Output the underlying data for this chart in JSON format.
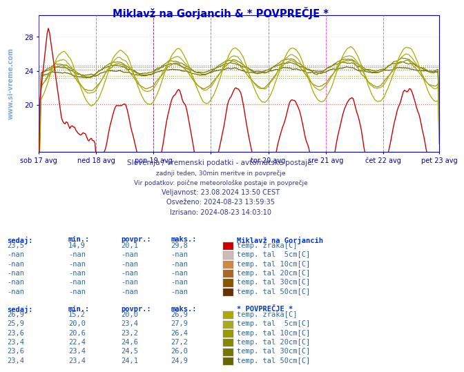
{
  "title": "Miklavž na Gorjancih & * POVPREČJE *",
  "title_color": "#0000cc",
  "bg_color": "#ffffff",
  "plot_bg_color": "#ffffff",
  "ylim": [
    14.5,
    30.5
  ],
  "xlim": [
    0,
    335
  ],
  "yticks": [
    20,
    24,
    28
  ],
  "tick_labels": [
    "sob 17 avg",
    "ned 18 avg",
    "pon 19 avg",
    "",
    "tor 20 avg",
    "sre 21 avg",
    "čet 22 avg",
    "pet 23 avg"
  ],
  "tick_positions": [
    0,
    48,
    96,
    144,
    192,
    240,
    288,
    335
  ],
  "subtitle_lines": [
    "Slovenija / vremenski podatki - avtomatske postaje.",
    "zadnji teden, 30min meritve in povprečje",
    "Vir podatkov: poični meteorološke postaje in povprečje",
    "Veljavnost: 23.08.2024 13:50 CEST",
    "Osveženo: 2024-08-23 13:59:35",
    "Izrisano: 2024-08-23 14:03:10"
  ],
  "table1_title": "Miklavž na Gorjancih",
  "table2_title": "* POVPREČJE *",
  "col_headers": [
    "sedaj:",
    "min.:",
    "povpr.:",
    "maks.:"
  ],
  "table1_rows": [
    [
      "23,5",
      "14,9",
      "20,1",
      "29,8",
      "#cc0000",
      "temp. zraka[C]"
    ],
    [
      "-nan",
      "-nan",
      "-nan",
      "-nan",
      "#ccbbbb",
      "temp. tal  5cm[C]"
    ],
    [
      "-nan",
      "-nan",
      "-nan",
      "-nan",
      "#cc8844",
      "temp. tal 10cm[C]"
    ],
    [
      "-nan",
      "-nan",
      "-nan",
      "-nan",
      "#aa6622",
      "temp. tal 20cm[C]"
    ],
    [
      "-nan",
      "-nan",
      "-nan",
      "-nan",
      "#885500",
      "temp. tal 30cm[C]"
    ],
    [
      "-nan",
      "-nan",
      "-nan",
      "-nan",
      "#663300",
      "temp. tal 50cm[C]"
    ]
  ],
  "table2_rows": [
    [
      "26,9",
      "15,2",
      "20,0",
      "26,9",
      "#aaaa00",
      "temp. zraka[C]"
    ],
    [
      "25,9",
      "20,0",
      "23,4",
      "27,9",
      "#aaaa22",
      "temp. tal  5cm[C]"
    ],
    [
      "23,6",
      "20,6",
      "23,2",
      "26,4",
      "#999900",
      "temp. tal 10cm[C]"
    ],
    [
      "23,4",
      "22,4",
      "24,6",
      "27,2",
      "#888800",
      "temp. tal 20cm[C]"
    ],
    [
      "23,6",
      "23,4",
      "24,5",
      "26,0",
      "#777700",
      "temp. tal 30cm[C]"
    ],
    [
      "23,4",
      "23,4",
      "24,1",
      "24,9",
      "#666600",
      "temp. tal 50cm[C]"
    ]
  ],
  "watermark": "www.si-vreme.com",
  "red_color": "#cc0000",
  "olive_colors": [
    "#aaaa00",
    "#aaaa22",
    "#999900",
    "#888800",
    "#777700",
    "#666600"
  ],
  "hlines": [
    [
      20.1,
      "#cc6600"
    ],
    [
      23.2,
      "#999900"
    ],
    [
      23.4,
      "#aaaa00"
    ],
    [
      24.1,
      "#666600"
    ],
    [
      24.5,
      "#777700"
    ],
    [
      24.6,
      "#888800"
    ]
  ]
}
